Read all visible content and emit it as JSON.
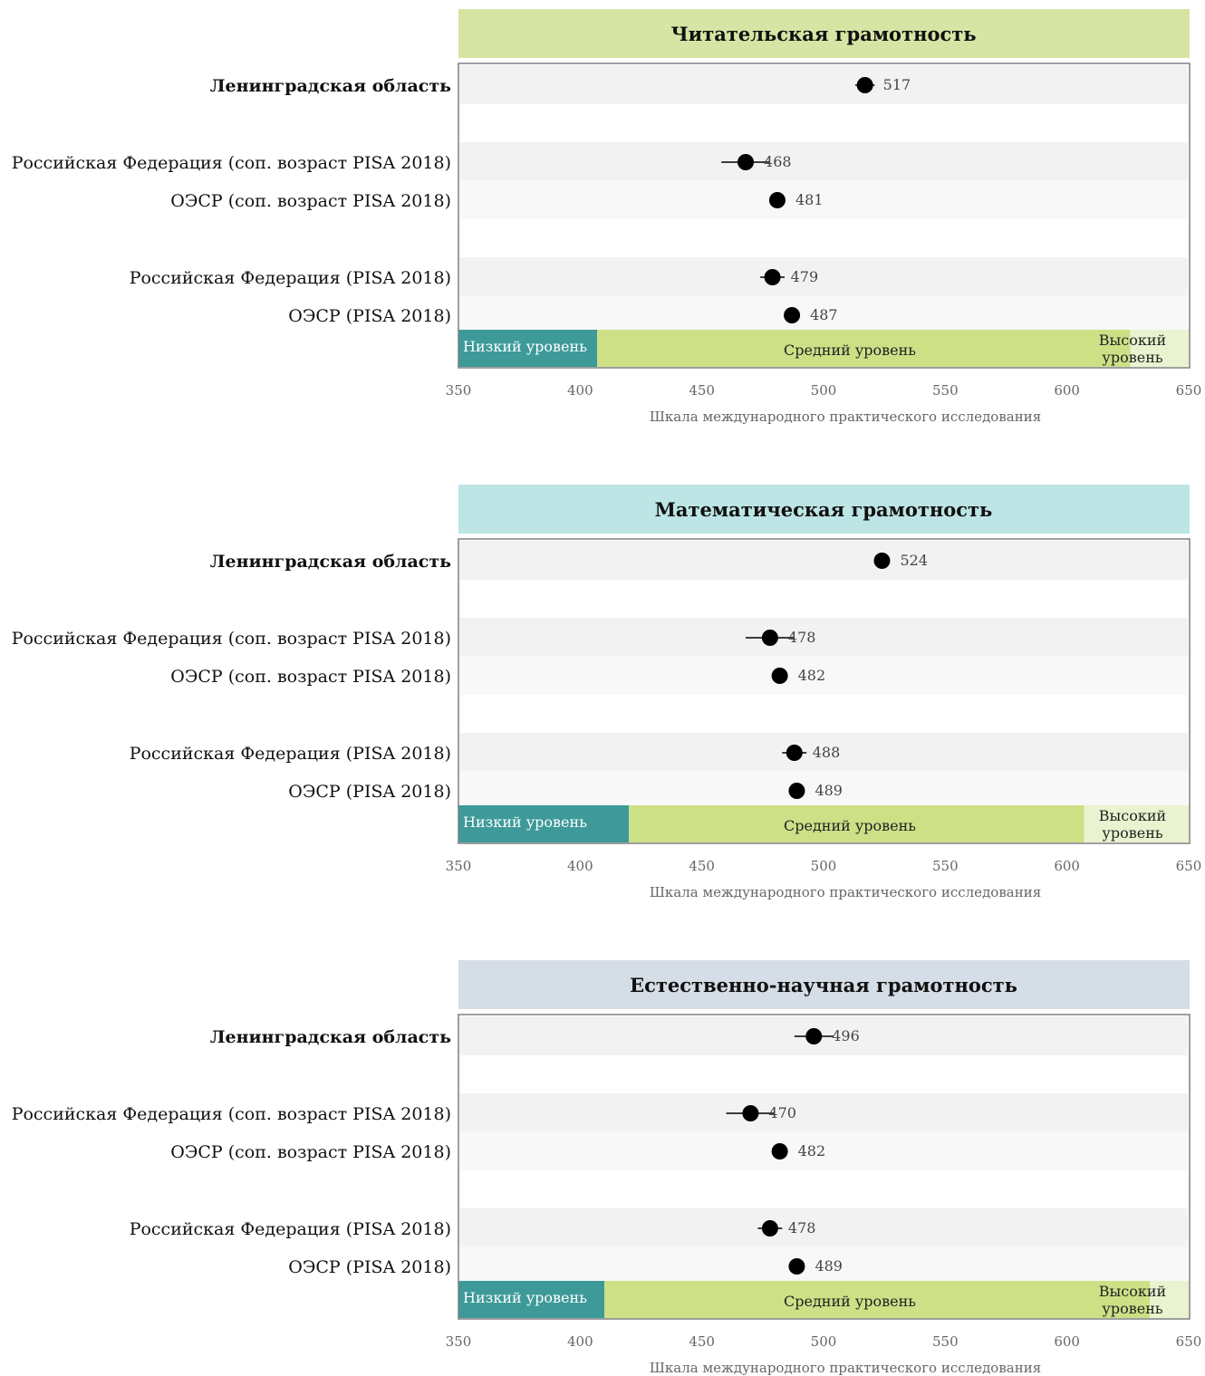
{
  "colors": {
    "low_band": "#3d9a99",
    "mid_band": "#cde086",
    "high_band": "#eaf3cf",
    "row_shade": "#f2f2f2",
    "row_light": "#f8f8f8",
    "frame": "#7f7f7f",
    "point": "#000000"
  },
  "chart_data": [
    {
      "type": "scatter",
      "title": "Читательская грамотность",
      "title_bg": "#d6e5a3",
      "xlim": [
        350,
        650
      ],
      "xticks": [
        "350",
        "400",
        "450",
        "500",
        "550",
        "600",
        "650"
      ],
      "xlabel": "Шкала международного практического исследования",
      "categories": [
        "Ленинградская область",
        "Российская Федерация (соп. возраст PISA 2018)",
        "ОЭСР (соп. возраст PISA 2018)",
        "Российская Федерация (PISA 2018)",
        "ОЭСР (PISA 2018)"
      ],
      "values": [
        517,
        468,
        481,
        479,
        487
      ],
      "error": [
        4,
        10,
        1,
        5,
        1
      ],
      "levels": [
        {
          "name": "Низкий уровень",
          "from": 350,
          "to": 407
        },
        {
          "name": "Средний уровень",
          "from": 407,
          "to": 626
        },
        {
          "name": "Высокий уровень",
          "from": 626,
          "to": 650
        }
      ]
    },
    {
      "type": "scatter",
      "title": "Математическая грамотность",
      "title_bg": "#bde5e5",
      "xlim": [
        350,
        650
      ],
      "xticks": [
        "350",
        "400",
        "450",
        "500",
        "550",
        "600",
        "650"
      ],
      "xlabel": "Шкала международного практического исследования",
      "categories": [
        "Ленинградская область",
        "Российская Федерация (соп. возраст PISA 2018)",
        "ОЭСР (соп. возраст PISA 2018)",
        "Российская Федерация (PISA 2018)",
        "ОЭСР (PISA 2018)"
      ],
      "values": [
        524,
        478,
        482,
        488,
        489
      ],
      "error": [
        2,
        10,
        1,
        5,
        1
      ],
      "levels": [
        {
          "name": "Низкий уровень",
          "from": 350,
          "to": 420
        },
        {
          "name": "Средний уровень",
          "from": 420,
          "to": 607
        },
        {
          "name": "Высокий уровень",
          "from": 607,
          "to": 650
        }
      ]
    },
    {
      "type": "scatter",
      "title": "Естественно-научная грамотность",
      "title_bg": "#d5dde6",
      "xlim": [
        350,
        650
      ],
      "xticks": [
        "350",
        "400",
        "450",
        "500",
        "550",
        "600",
        "650"
      ],
      "xlabel": "Шкала международного практического исследования",
      "categories": [
        "Ленинградская область",
        "Российская Федерация (соп. возраст PISA 2018)",
        "ОЭСР (соп. возраст PISA 2018)",
        "Российская Федерация (PISA 2018)",
        "ОЭСР (PISA 2018)"
      ],
      "values": [
        496,
        470,
        482,
        478,
        489
      ],
      "error": [
        8,
        10,
        1,
        5,
        1
      ],
      "levels": [
        {
          "name": "Низкий уровень",
          "from": 350,
          "to": 410
        },
        {
          "name": "Средний уровень",
          "from": 410,
          "to": 634
        },
        {
          "name": "Высокий уровень",
          "from": 634,
          "to": 650
        }
      ]
    }
  ]
}
